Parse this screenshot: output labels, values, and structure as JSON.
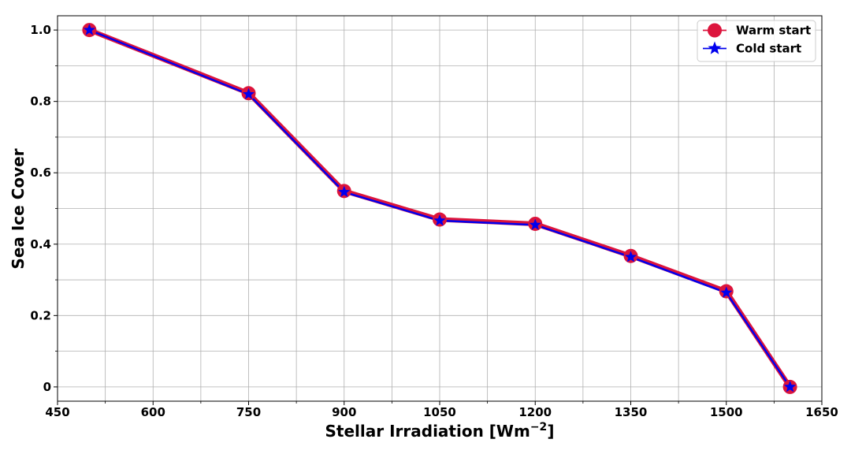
{
  "chart_data": {
    "type": "line",
    "xlabel": "Stellar Irradiation [Wm",
    "xlabel_sup": "−2",
    "xlabel_end": "]",
    "ylabel": "Sea Ice Cover",
    "xlim": [
      450,
      1650
    ],
    "ylim": [
      -0.04,
      1.04
    ],
    "x_ticks": [
      450,
      600,
      750,
      900,
      1050,
      1200,
      1350,
      1500,
      1650
    ],
    "x_ticks_minor": [
      525,
      675,
      825,
      975,
      1125,
      1275,
      1425,
      1575
    ],
    "y_ticks": [
      0,
      0.2,
      0.4,
      0.6,
      0.8,
      1.0
    ],
    "y_tick_labels": [
      "0",
      "0.2",
      "0.4",
      "0.6",
      "0.8",
      "1.0"
    ],
    "y_ticks_minor": [
      0.1,
      0.3,
      0.5,
      0.7,
      0.9
    ],
    "grid": true,
    "legend_position": "top-right",
    "x": [
      500,
      750,
      900,
      1050,
      1200,
      1350,
      1500,
      1600
    ],
    "series": [
      {
        "name": "Warm start",
        "color": "#dc143c",
        "marker": "circle",
        "values": [
          1.0,
          0.823,
          0.549,
          0.469,
          0.457,
          0.367,
          0.268,
          0.0
        ]
      },
      {
        "name": "Cold start",
        "color": "#0000ee",
        "marker": "star",
        "values": [
          1.0,
          0.82,
          0.546,
          0.466,
          0.454,
          0.364,
          0.264,
          0.0
        ]
      }
    ]
  }
}
